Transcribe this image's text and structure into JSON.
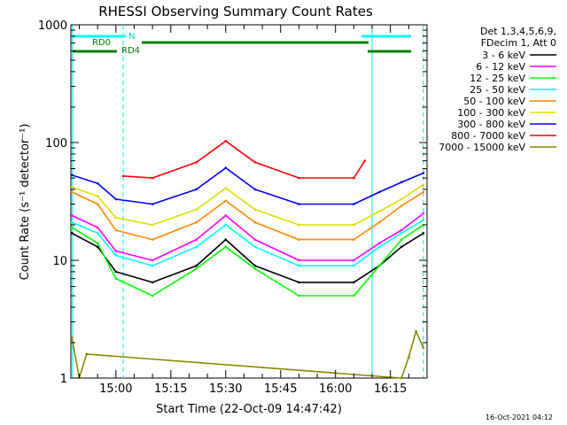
{
  "chart_data": {
    "type": "line",
    "title": "RHESSI Observing Summary Count Rates",
    "xlabel": "Start Time (22-Oct-09 14:47:42)",
    "ylabel": "Count Rate (s⁻¹ detector⁻¹)",
    "y_scale": "log",
    "ylim": [
      1,
      1000
    ],
    "y_ticks": [
      {
        "value": 1,
        "label": "1"
      },
      {
        "value": 10,
        "label": "10"
      },
      {
        "value": 100,
        "label": "100"
      },
      {
        "value": 1000,
        "label": "1000"
      }
    ],
    "x_time_range": [
      "14:47:42",
      "16:25:00"
    ],
    "x_ticks": [
      {
        "time": "15:00",
        "label": "15:00"
      },
      {
        "time": "15:15",
        "label": "15:15"
      },
      {
        "time": "15:30",
        "label": "15:30"
      },
      {
        "time": "15:45",
        "label": "15:45"
      },
      {
        "time": "16:00",
        "label": "16:00"
      },
      {
        "time": "16:15",
        "label": "16:15"
      }
    ],
    "legend": {
      "placement": "right",
      "header_lines": [
        "Det 1,3,4,5,6,9,",
        "FDecim 1, Att 0"
      ]
    },
    "series": [
      {
        "name": "3 - 6 keV",
        "color": "#000000",
        "times": [
          "14:48",
          "14:55",
          "15:00",
          "15:10",
          "15:22",
          "15:30",
          "15:38",
          "15:50",
          "16:05",
          "16:12",
          "16:18",
          "16:24"
        ],
        "values": [
          17,
          13,
          8,
          6.5,
          9,
          15,
          9,
          6.5,
          6.5,
          9,
          13,
          17
        ]
      },
      {
        "name": "6 - 12 keV",
        "color": "#ff00ff",
        "times": [
          "14:48",
          "14:55",
          "15:00",
          "15:10",
          "15:22",
          "15:30",
          "15:38",
          "15:50",
          "16:05",
          "16:12",
          "16:18",
          "16:24"
        ],
        "values": [
          24,
          19,
          12,
          10,
          15,
          24,
          15,
          10,
          10,
          14,
          18,
          25
        ]
      },
      {
        "name": "12 - 25 keV",
        "color": "#00ff00",
        "times": [
          "14:48",
          "14:55",
          "15:00",
          "15:10",
          "15:22",
          "15:30",
          "15:38",
          "15:50",
          "16:05",
          "16:12",
          "16:18",
          "16:24"
        ],
        "values": [
          19,
          14,
          7,
          5,
          8.5,
          13,
          8.5,
          5,
          5,
          9,
          15,
          20
        ]
      },
      {
        "name": "25 - 50 keV",
        "color": "#00ffff",
        "times": [
          "14:48",
          "14:55",
          "15:00",
          "15:10",
          "15:22",
          "15:30",
          "15:38",
          "15:50",
          "16:05",
          "16:12",
          "16:18",
          "16:24"
        ],
        "values": [
          21,
          17,
          11,
          9,
          13,
          20,
          13,
          9,
          9,
          13,
          17,
          22
        ]
      },
      {
        "name": "50 - 100 keV",
        "color": "#ff8800",
        "times": [
          "14:48",
          "14:55",
          "15:00",
          "15:10",
          "15:22",
          "15:30",
          "15:38",
          "15:50",
          "16:05",
          "16:12",
          "16:18",
          "16:24"
        ],
        "values": [
          38,
          30,
          18,
          15,
          21,
          32,
          21,
          15,
          15,
          21,
          29,
          38
        ]
      },
      {
        "name": "100 - 300 keV",
        "color": "#dddd00",
        "times": [
          "14:48",
          "14:55",
          "15:00",
          "15:10",
          "15:22",
          "15:30",
          "15:38",
          "15:50",
          "16:05",
          "16:12",
          "16:18",
          "16:24"
        ],
        "values": [
          42,
          35,
          23,
          20,
          27,
          41,
          27,
          20,
          20,
          26,
          33,
          44
        ]
      },
      {
        "name": "300 - 800 keV",
        "color": "#0000ff",
        "times": [
          "14:48",
          "14:55",
          "15:00",
          "15:10",
          "15:22",
          "15:30",
          "15:38",
          "15:50",
          "16:05",
          "16:12",
          "16:18",
          "16:24"
        ],
        "values": [
          53,
          45,
          33,
          30,
          40,
          61,
          40,
          30,
          30,
          38,
          46,
          55
        ]
      },
      {
        "name": "800 - 7000 keV",
        "color": "#ff0000",
        "times": [
          "15:02",
          "15:10",
          "15:22",
          "15:30",
          "15:38",
          "15:50",
          "16:05",
          "16:08"
        ],
        "values": [
          52,
          50,
          68,
          103,
          68,
          50,
          50,
          70
        ]
      },
      {
        "name": "7000 - 15000 keV",
        "color": "#888800",
        "times": [
          "14:48",
          "14:50",
          "14:52",
          "16:18",
          "16:20",
          "16:22",
          "16:24"
        ],
        "values": [
          2.2,
          1.0,
          1.6,
          1.0,
          1.5,
          2.5,
          1.8
        ]
      }
    ],
    "annotations": {
      "N": "N",
      "RD0": "RD0",
      "RD4": "RD4"
    },
    "stamp": "16-Oct-2021 04:12"
  }
}
